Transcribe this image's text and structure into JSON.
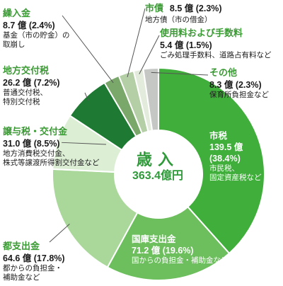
{
  "chart_data": {
    "type": "pie",
    "title": "歳入",
    "total_label": "363.4億円",
    "slices": [
      {
        "name": "市税",
        "value": 139.5,
        "value_label": "139.5 億",
        "percent_label": "(38.4%)",
        "note": [
          "市民税、",
          "固定資産税など"
        ],
        "color": "#3fae3a"
      },
      {
        "name": "国庫支出金",
        "value": 71.2,
        "value_label": "71.2 億 (19.6%)",
        "note": [
          "国からの負担金・補助金など"
        ],
        "color": "#6dbf5e"
      },
      {
        "name": "都支出金",
        "value": 64.6,
        "value_label": "64.6 億 (17.8%)",
        "note": [
          "都からの負担金・",
          "補助金など"
        ],
        "color": "#a9d89a"
      },
      {
        "name": "譲与税・交付金",
        "value": 31.0,
        "value_label": "31.0 億 (8.5%)",
        "note": [
          "地方消費税交付金、",
          "株式等譲渡所得割交付金など"
        ],
        "color": "#dcefd5"
      },
      {
        "name": "地方交付税",
        "value": 26.2,
        "value_label": "26.2 億 (7.2%)",
        "note": [
          "普通交付税、",
          "特別交付税"
        ],
        "color": "#1e7a32"
      },
      {
        "name": "繰入金",
        "value": 8.7,
        "value_label": "8.7 億 (2.4%)",
        "note": [
          "基金（市の貯金）の",
          "取崩し"
        ],
        "color": "#7aa86b"
      },
      {
        "name": "市債",
        "value": 8.5,
        "value_label": "8.5 億 (2.3%)",
        "note": [
          "地方債（市の借金）"
        ],
        "color": "#b4cfa6"
      },
      {
        "name": "使用料および手数料",
        "value": 5.4,
        "value_label": "5.4 億 (1.5%)",
        "note": [
          "ごみ処理手数料、道路占有料など"
        ],
        "color": "#e3ecdc"
      },
      {
        "name": "その他",
        "value": 8.3,
        "value_label": "8.3 億 (2.3%)",
        "note": [
          "保育所負担金など"
        ],
        "color": "#c4c7c4"
      }
    ]
  }
}
